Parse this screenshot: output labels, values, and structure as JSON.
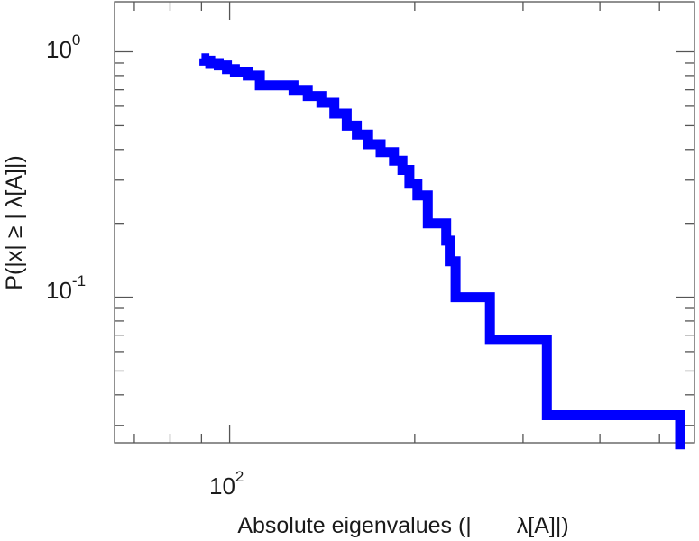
{
  "chart_data": {
    "type": "line",
    "line_style": "step",
    "x_scale": "log",
    "y_scale": "log",
    "xlabel": "Absolute eigenvalues (|  λ[A]|)",
    "ylabel": "P(|x|  ≥ | λ[A]|)",
    "xlim": [
      65,
      570
    ],
    "ylim": [
      0.0255,
      1.6
    ],
    "x_major_ticks": [
      {
        "value": 100,
        "base": "10",
        "exp": "2"
      }
    ],
    "x_minor_ticks": [
      70,
      80,
      90,
      200,
      300,
      400,
      500
    ],
    "y_major_ticks": [
      {
        "value": 1.0,
        "base": "10",
        "exp": "0"
      },
      {
        "value": 0.1,
        "base": "10",
        "exp": "-1"
      }
    ],
    "y_minor_ticks": [
      0.03,
      0.04,
      0.05,
      0.06,
      0.07,
      0.08,
      0.09,
      0.2,
      0.3,
      0.4,
      0.5,
      0.6,
      0.7,
      0.8,
      0.9
    ],
    "grid": false,
    "legend": "none",
    "series": [
      {
        "color": "#0000ff",
        "x": [
          90,
          91,
          93,
          96,
          99,
          102,
          107,
          112,
          122,
          127,
          134,
          141,
          148,
          155,
          161,
          168,
          176,
          185,
          191,
          196,
          202,
          210,
          225,
          228,
          233,
          265,
          328,
          440,
          538,
          540
        ],
        "y": [
          0.94,
          0.92,
          0.9,
          0.88,
          0.85,
          0.83,
          0.8,
          0.73,
          0.73,
          0.7,
          0.66,
          0.62,
          0.56,
          0.5,
          0.46,
          0.42,
          0.39,
          0.36,
          0.33,
          0.29,
          0.26,
          0.2,
          0.17,
          0.14,
          0.1,
          0.067,
          0.033,
          0.033,
          0.033,
          0.024
        ]
      }
    ]
  }
}
